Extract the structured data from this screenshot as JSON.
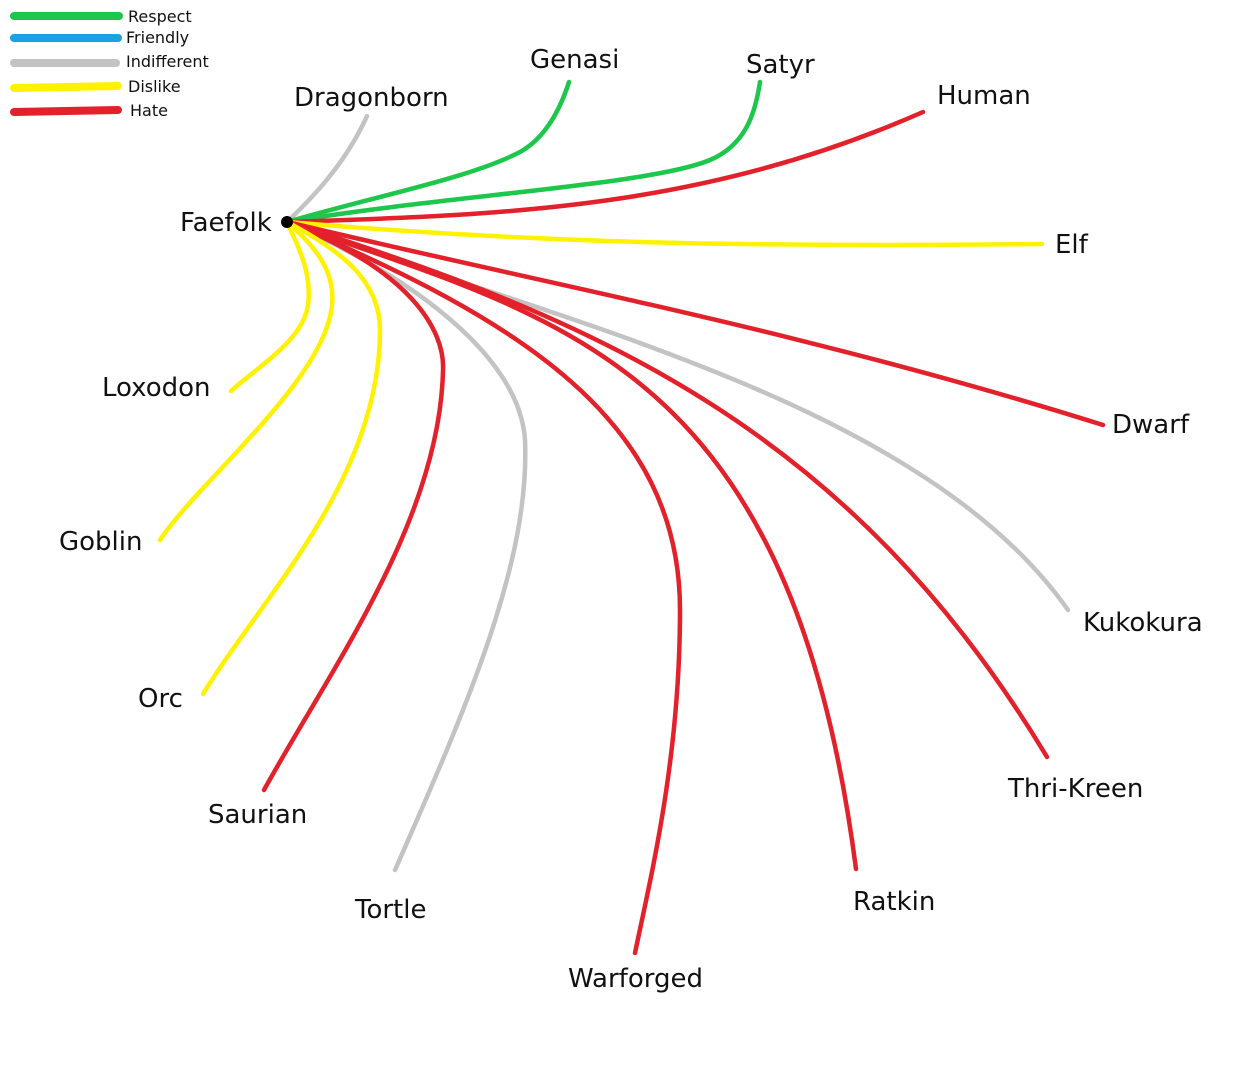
{
  "legend": {
    "items": [
      {
        "label": "Respect",
        "color": "#1DC74B"
      },
      {
        "label": "Friendly",
        "color": "#17A2E3"
      },
      {
        "label": "Indifferent",
        "color": "#C3C3C3"
      },
      {
        "label": "Dislike",
        "color": "#FFF200"
      },
      {
        "label": "Hate",
        "color": "#E3212B"
      }
    ]
  },
  "center": {
    "name": "Faefolk",
    "color": "#000000"
  },
  "relations": [
    {
      "race": "Dragonborn",
      "attitude": "Indifferent"
    },
    {
      "race": "Genasi",
      "attitude": "Respect"
    },
    {
      "race": "Satyr",
      "attitude": "Respect"
    },
    {
      "race": "Human",
      "attitude": "Hate"
    },
    {
      "race": "Elf",
      "attitude": "Dislike"
    },
    {
      "race": "Dwarf",
      "attitude": "Hate"
    },
    {
      "race": "Kukokura",
      "attitude": "Indifferent"
    },
    {
      "race": "Thri-Kreen",
      "attitude": "Hate"
    },
    {
      "race": "Ratkin",
      "attitude": "Hate"
    },
    {
      "race": "Warforged",
      "attitude": "Hate"
    },
    {
      "race": "Tortle",
      "attitude": "Indifferent"
    },
    {
      "race": "Saurian",
      "attitude": "Hate"
    },
    {
      "race": "Orc",
      "attitude": "Dislike"
    },
    {
      "race": "Goblin",
      "attitude": "Dislike"
    },
    {
      "race": "Loxodon",
      "attitude": "Dislike"
    }
  ]
}
